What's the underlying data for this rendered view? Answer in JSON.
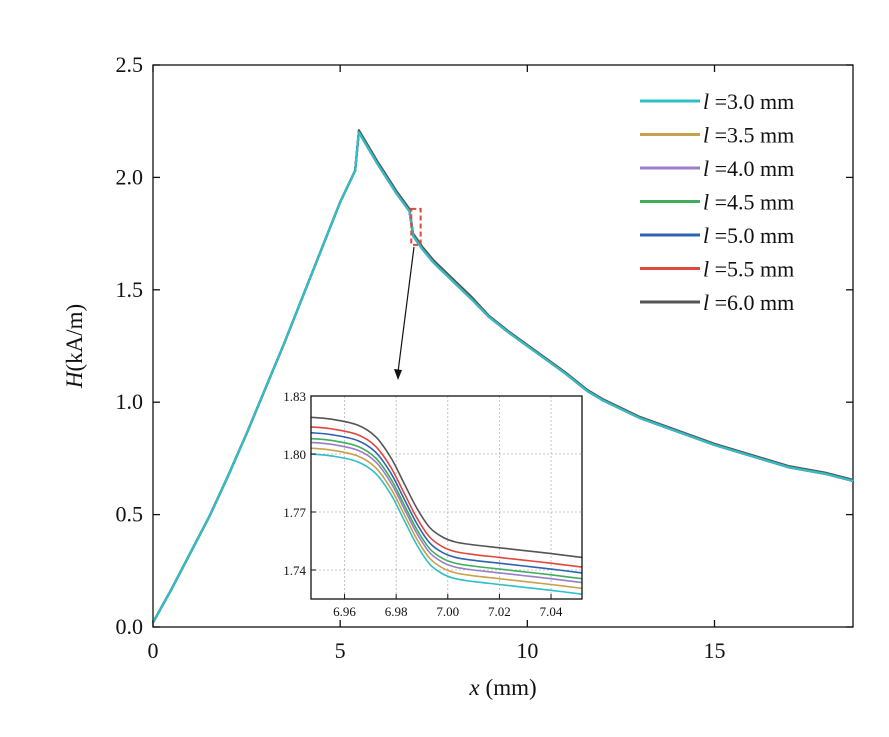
{
  "chart_data": [
    {
      "type": "line",
      "title": "",
      "xlabel": "x (mm)",
      "xlabel_var": "x",
      "xlabel_unit": "(mm)",
      "ylabel": "H(kA/m)",
      "ylabel_var": "H",
      "ylabel_unit": "(kA/m)",
      "xlim": [
        0,
        18.7
      ],
      "ylim": [
        0,
        2.5
      ],
      "xticks": [
        0,
        5,
        10,
        15
      ],
      "xtick_labels": [
        "0",
        "5",
        "10",
        "15"
      ],
      "yticks": [
        0,
        0.5,
        1.0,
        1.5,
        2.0,
        2.5
      ],
      "ytick_labels": [
        "0.0",
        "0.5",
        "1.0",
        "1.5",
        "2.0",
        "2.5"
      ],
      "grid": false,
      "legend_position": "top-right",
      "zoom_region": {
        "x": [
          6.9,
          7.15
        ],
        "y": [
          1.7,
          1.86
        ]
      },
      "x": [
        0,
        0.5,
        1.0,
        1.5,
        2.0,
        2.5,
        3.0,
        3.5,
        4.0,
        4.5,
        5.0,
        5.4,
        5.48,
        5.5,
        5.75,
        6.0,
        6.5,
        6.85,
        6.95,
        7.2,
        7.5,
        8.0,
        8.5,
        8.97,
        9.5,
        10.0,
        11.0,
        11.6,
        12.0,
        13.0,
        14.0,
        15.0,
        16.0,
        17.0,
        18.0,
        18.7
      ],
      "series": [
        {
          "name": "l =3.0 mm",
          "label_var": "l",
          "label_rest": " =3.0 mm",
          "color": "#2ebfc7",
          "values": [
            0.02,
            0.17,
            0.33,
            0.49,
            0.67,
            0.86,
            1.06,
            1.26,
            1.47,
            1.68,
            1.89,
            2.03,
            2.17,
            2.2,
            2.13,
            2.06,
            1.93,
            1.85,
            1.74,
            1.68,
            1.62,
            1.54,
            1.46,
            1.38,
            1.31,
            1.25,
            1.13,
            1.05,
            1.01,
            0.93,
            0.87,
            0.81,
            0.76,
            0.71,
            0.68,
            0.65
          ]
        },
        {
          "name": "l =3.5 mm",
          "label_var": "l",
          "label_rest": " =3.5 mm",
          "color": "#c8a24a",
          "values": [
            0.02,
            0.17,
            0.33,
            0.49,
            0.67,
            0.86,
            1.06,
            1.26,
            1.47,
            1.68,
            1.89,
            2.03,
            2.17,
            2.2,
            2.13,
            2.06,
            1.93,
            1.85,
            1.74,
            1.68,
            1.62,
            1.54,
            1.46,
            1.38,
            1.31,
            1.25,
            1.13,
            1.05,
            1.01,
            0.93,
            0.87,
            0.81,
            0.76,
            0.71,
            0.68,
            0.65
          ]
        },
        {
          "name": "l =4.0 mm",
          "label_var": "l",
          "label_rest": " =4.0 mm",
          "color": "#9b7ec7",
          "values": [
            0.02,
            0.17,
            0.33,
            0.49,
            0.67,
            0.86,
            1.06,
            1.26,
            1.47,
            1.68,
            1.89,
            2.03,
            2.17,
            2.2,
            2.13,
            2.06,
            1.93,
            1.85,
            1.74,
            1.68,
            1.62,
            1.54,
            1.46,
            1.38,
            1.31,
            1.25,
            1.13,
            1.05,
            1.01,
            0.93,
            0.87,
            0.81,
            0.76,
            0.71,
            0.68,
            0.65
          ]
        },
        {
          "name": "l =4.5 mm",
          "label_var": "l",
          "label_rest": " =4.5 mm",
          "color": "#3fae5a",
          "values": [
            0.02,
            0.17,
            0.33,
            0.49,
            0.67,
            0.86,
            1.06,
            1.26,
            1.47,
            1.68,
            1.89,
            2.03,
            2.17,
            2.2,
            2.13,
            2.06,
            1.93,
            1.85,
            1.74,
            1.68,
            1.62,
            1.54,
            1.46,
            1.38,
            1.31,
            1.25,
            1.13,
            1.05,
            1.01,
            0.93,
            0.87,
            0.81,
            0.76,
            0.71,
            0.68,
            0.65
          ]
        },
        {
          "name": "l =5.0 mm",
          "label_var": "l",
          "label_rest": " =5.0 mm",
          "color": "#2f62b0",
          "values": [
            0.02,
            0.17,
            0.33,
            0.49,
            0.67,
            0.86,
            1.06,
            1.26,
            1.47,
            1.68,
            1.89,
            2.03,
            2.17,
            2.2,
            2.13,
            2.06,
            1.93,
            1.85,
            1.74,
            1.68,
            1.62,
            1.54,
            1.46,
            1.38,
            1.31,
            1.25,
            1.13,
            1.05,
            1.01,
            0.93,
            0.87,
            0.81,
            0.76,
            0.71,
            0.68,
            0.65
          ]
        },
        {
          "name": "l =5.5 mm",
          "label_var": "l",
          "label_rest": " =5.5 mm",
          "color": "#e0483d",
          "values": [
            0.02,
            0.17,
            0.33,
            0.49,
            0.67,
            0.86,
            1.06,
            1.26,
            1.47,
            1.68,
            1.89,
            2.03,
            2.17,
            2.2,
            2.13,
            2.06,
            1.93,
            1.85,
            1.74,
            1.68,
            1.62,
            1.54,
            1.46,
            1.38,
            1.31,
            1.25,
            1.13,
            1.05,
            1.01,
            0.93,
            0.87,
            0.81,
            0.76,
            0.71,
            0.68,
            0.65
          ]
        },
        {
          "name": "l =6.0 mm",
          "label_var": "l",
          "label_rest": " =6.0 mm",
          "color": "#555555",
          "values": [
            0.02,
            0.17,
            0.33,
            0.49,
            0.67,
            0.86,
            1.06,
            1.26,
            1.47,
            1.68,
            1.89,
            2.03,
            2.17,
            2.21,
            2.14,
            2.07,
            1.94,
            1.86,
            1.75,
            1.69,
            1.63,
            1.55,
            1.47,
            1.385,
            1.315,
            1.255,
            1.135,
            1.055,
            1.015,
            0.935,
            0.875,
            0.815,
            0.765,
            0.715,
            0.685,
            0.655
          ]
        }
      ]
    },
    {
      "type": "line",
      "title": "",
      "xlabel": "",
      "ylabel": "",
      "xlim": [
        6.947,
        7.052
      ],
      "ylim": [
        1.725,
        1.83
      ],
      "xticks": [
        6.96,
        6.98,
        7.0,
        7.02,
        7.04
      ],
      "xtick_labels": [
        "6.96",
        "6.98",
        "7.00",
        "7.02",
        "7.04"
      ],
      "yticks": [
        1.74,
        1.77,
        1.8,
        1.83
      ],
      "ytick_labels": [
        "1.74",
        "1.77",
        "1.80",
        "1.83"
      ],
      "grid": true,
      "x": [
        6.947,
        6.955,
        6.965,
        6.972,
        6.978,
        6.983,
        6.988,
        6.993,
        6.998,
        7.003,
        7.01,
        7.02,
        7.03,
        7.04,
        7.052
      ],
      "series": [
        {
          "name": "l =3.0 mm",
          "color": "#2ebfc7",
          "values": [
            1.8,
            1.799,
            1.796,
            1.79,
            1.779,
            1.766,
            1.753,
            1.743,
            1.738,
            1.7355,
            1.734,
            1.7325,
            1.731,
            1.7295,
            1.7275
          ]
        },
        {
          "name": "l =3.5 mm",
          "color": "#c8a24a",
          "values": [
            1.803,
            1.802,
            1.799,
            1.793,
            1.782,
            1.769,
            1.756,
            1.746,
            1.741,
            1.7385,
            1.737,
            1.7355,
            1.734,
            1.7325,
            1.7305
          ]
        },
        {
          "name": "l =4.0 mm",
          "color": "#9b7ec7",
          "values": [
            1.806,
            1.805,
            1.802,
            1.796,
            1.785,
            1.772,
            1.759,
            1.749,
            1.744,
            1.7415,
            1.74,
            1.7385,
            1.737,
            1.7355,
            1.7335
          ]
        },
        {
          "name": "l =4.5 mm",
          "color": "#3fae5a",
          "values": [
            1.808,
            1.807,
            1.804,
            1.798,
            1.787,
            1.774,
            1.761,
            1.751,
            1.746,
            1.7435,
            1.742,
            1.7405,
            1.739,
            1.7375,
            1.7355
          ]
        },
        {
          "name": "l =5.0 mm",
          "color": "#2f62b0",
          "values": [
            1.811,
            1.81,
            1.807,
            1.801,
            1.79,
            1.777,
            1.764,
            1.754,
            1.749,
            1.7465,
            1.745,
            1.7435,
            1.742,
            1.7405,
            1.7385
          ]
        },
        {
          "name": "l =5.5 mm",
          "color": "#e0483d",
          "values": [
            1.814,
            1.813,
            1.81,
            1.804,
            1.793,
            1.78,
            1.767,
            1.757,
            1.752,
            1.7495,
            1.748,
            1.7465,
            1.745,
            1.7435,
            1.7415
          ]
        },
        {
          "name": "l =6.0 mm",
          "color": "#555555",
          "values": [
            1.819,
            1.818,
            1.815,
            1.809,
            1.798,
            1.785,
            1.772,
            1.762,
            1.757,
            1.7545,
            1.753,
            1.7515,
            1.75,
            1.7485,
            1.7465
          ]
        }
      ]
    }
  ]
}
